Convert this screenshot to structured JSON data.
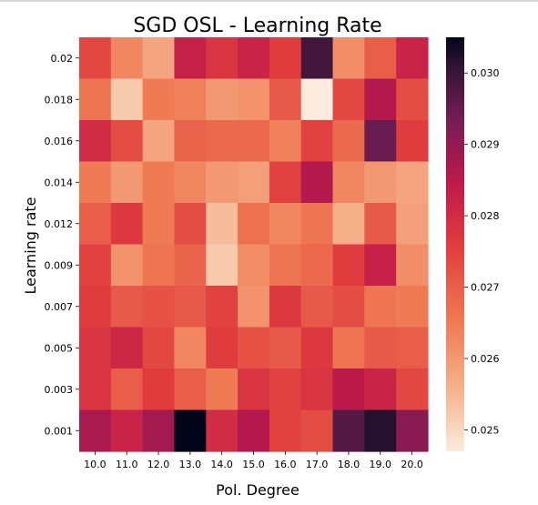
{
  "chart_data": {
    "type": "heatmap",
    "title": "SGD OSL - Learning Rate",
    "xlabel": "Pol. Degree",
    "ylabel": "Learning rate",
    "x_categories": [
      "10.0",
      "11.0",
      "12.0",
      "13.0",
      "14.0",
      "15.0",
      "16.0",
      "17.0",
      "18.0",
      "19.0",
      "20.0"
    ],
    "y_categories": [
      "0.02",
      "0.018",
      "0.016",
      "0.014",
      "0.012",
      "0.009",
      "0.007",
      "0.005",
      "0.003",
      "0.001"
    ],
    "values": [
      [
        0.0274,
        0.0263,
        0.0258,
        0.0283,
        0.0278,
        0.0282,
        0.0276,
        0.0299,
        0.0262,
        0.027,
        0.0282
      ],
      [
        0.0266,
        0.0252,
        0.0265,
        0.0264,
        0.026,
        0.0261,
        0.0271,
        0.0247,
        0.0274,
        0.0286,
        0.0273
      ],
      [
        0.028,
        0.0273,
        0.0258,
        0.0269,
        0.0268,
        0.0268,
        0.0264,
        0.0275,
        0.0268,
        0.0295,
        0.0276
      ],
      [
        0.0265,
        0.026,
        0.0265,
        0.0263,
        0.026,
        0.0259,
        0.0275,
        0.0286,
        0.0263,
        0.026,
        0.0258
      ],
      [
        0.027,
        0.0277,
        0.0265,
        0.0273,
        0.0254,
        0.0267,
        0.0263,
        0.0266,
        0.0256,
        0.0271,
        0.0259
      ],
      [
        0.0275,
        0.0261,
        0.0266,
        0.0269,
        0.0252,
        0.0262,
        0.0266,
        0.0268,
        0.0276,
        0.0283,
        0.0262
      ],
      [
        0.0276,
        0.0271,
        0.0272,
        0.0271,
        0.0275,
        0.0261,
        0.0277,
        0.0271,
        0.0273,
        0.0266,
        0.0265
      ],
      [
        0.0278,
        0.0281,
        0.0274,
        0.0263,
        0.0276,
        0.0272,
        0.0271,
        0.0277,
        0.0266,
        0.0271,
        0.027
      ],
      [
        0.0278,
        0.027,
        0.0276,
        0.027,
        0.0265,
        0.0278,
        0.0275,
        0.0278,
        0.0285,
        0.0282,
        0.0274
      ],
      [
        0.0287,
        0.0282,
        0.0288,
        0.0305,
        0.028,
        0.0286,
        0.0275,
        0.0273,
        0.0297,
        0.0302,
        0.0291
      ]
    ],
    "vmin": 0.0247,
    "vmax": 0.0305,
    "colorbar_ticks": [
      "0.025",
      "0.026",
      "0.027",
      "0.028",
      "0.029",
      "0.030"
    ],
    "colormap": "rocket",
    "grid": false,
    "legend": "colorbar-right"
  }
}
